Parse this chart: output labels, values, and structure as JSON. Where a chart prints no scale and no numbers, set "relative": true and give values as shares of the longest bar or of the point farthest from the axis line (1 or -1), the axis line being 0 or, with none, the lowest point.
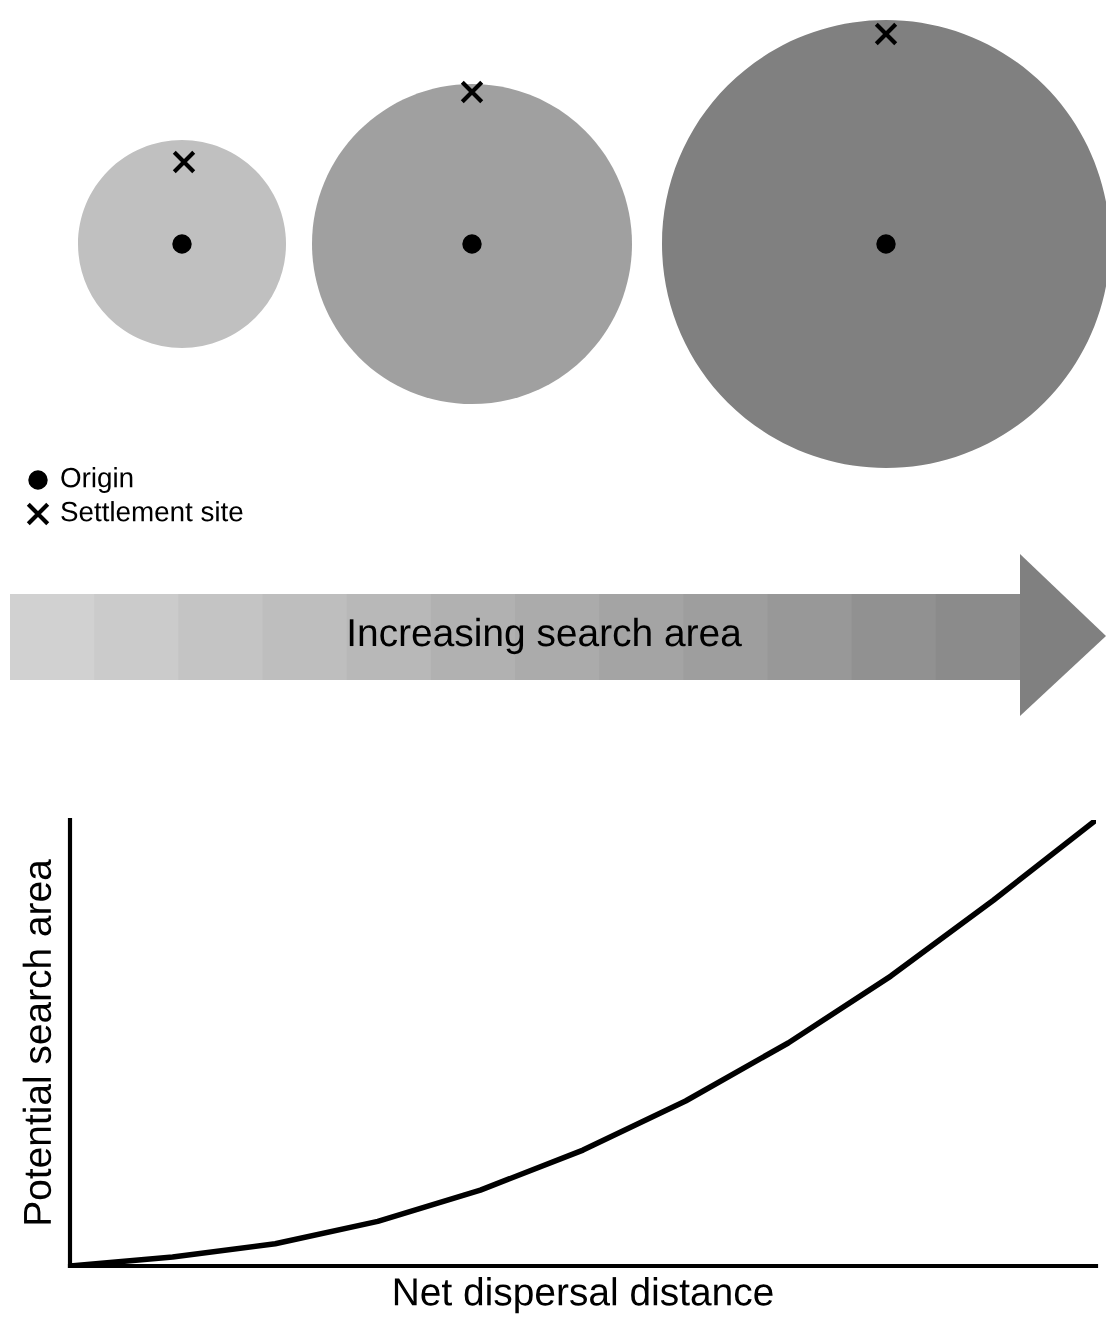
{
  "chart_data": [
    {
      "type": "other",
      "annotations": [
        "Origin",
        "Settlement site",
        "Increasing search area"
      ]
    },
    {
      "type": "line",
      "xlabel": "Net dispersal distance",
      "ylabel": "Potential search area",
      "relative": true,
      "color": "#000000",
      "categories": [
        null,
        null,
        null,
        null,
        null,
        null,
        null,
        null,
        null,
        null,
        null
      ],
      "values": [
        0,
        0.02,
        0.05,
        0.1,
        0.17,
        0.26,
        0.37,
        0.5,
        0.65,
        0.82,
        1.0
      ]
    }
  ]
}
